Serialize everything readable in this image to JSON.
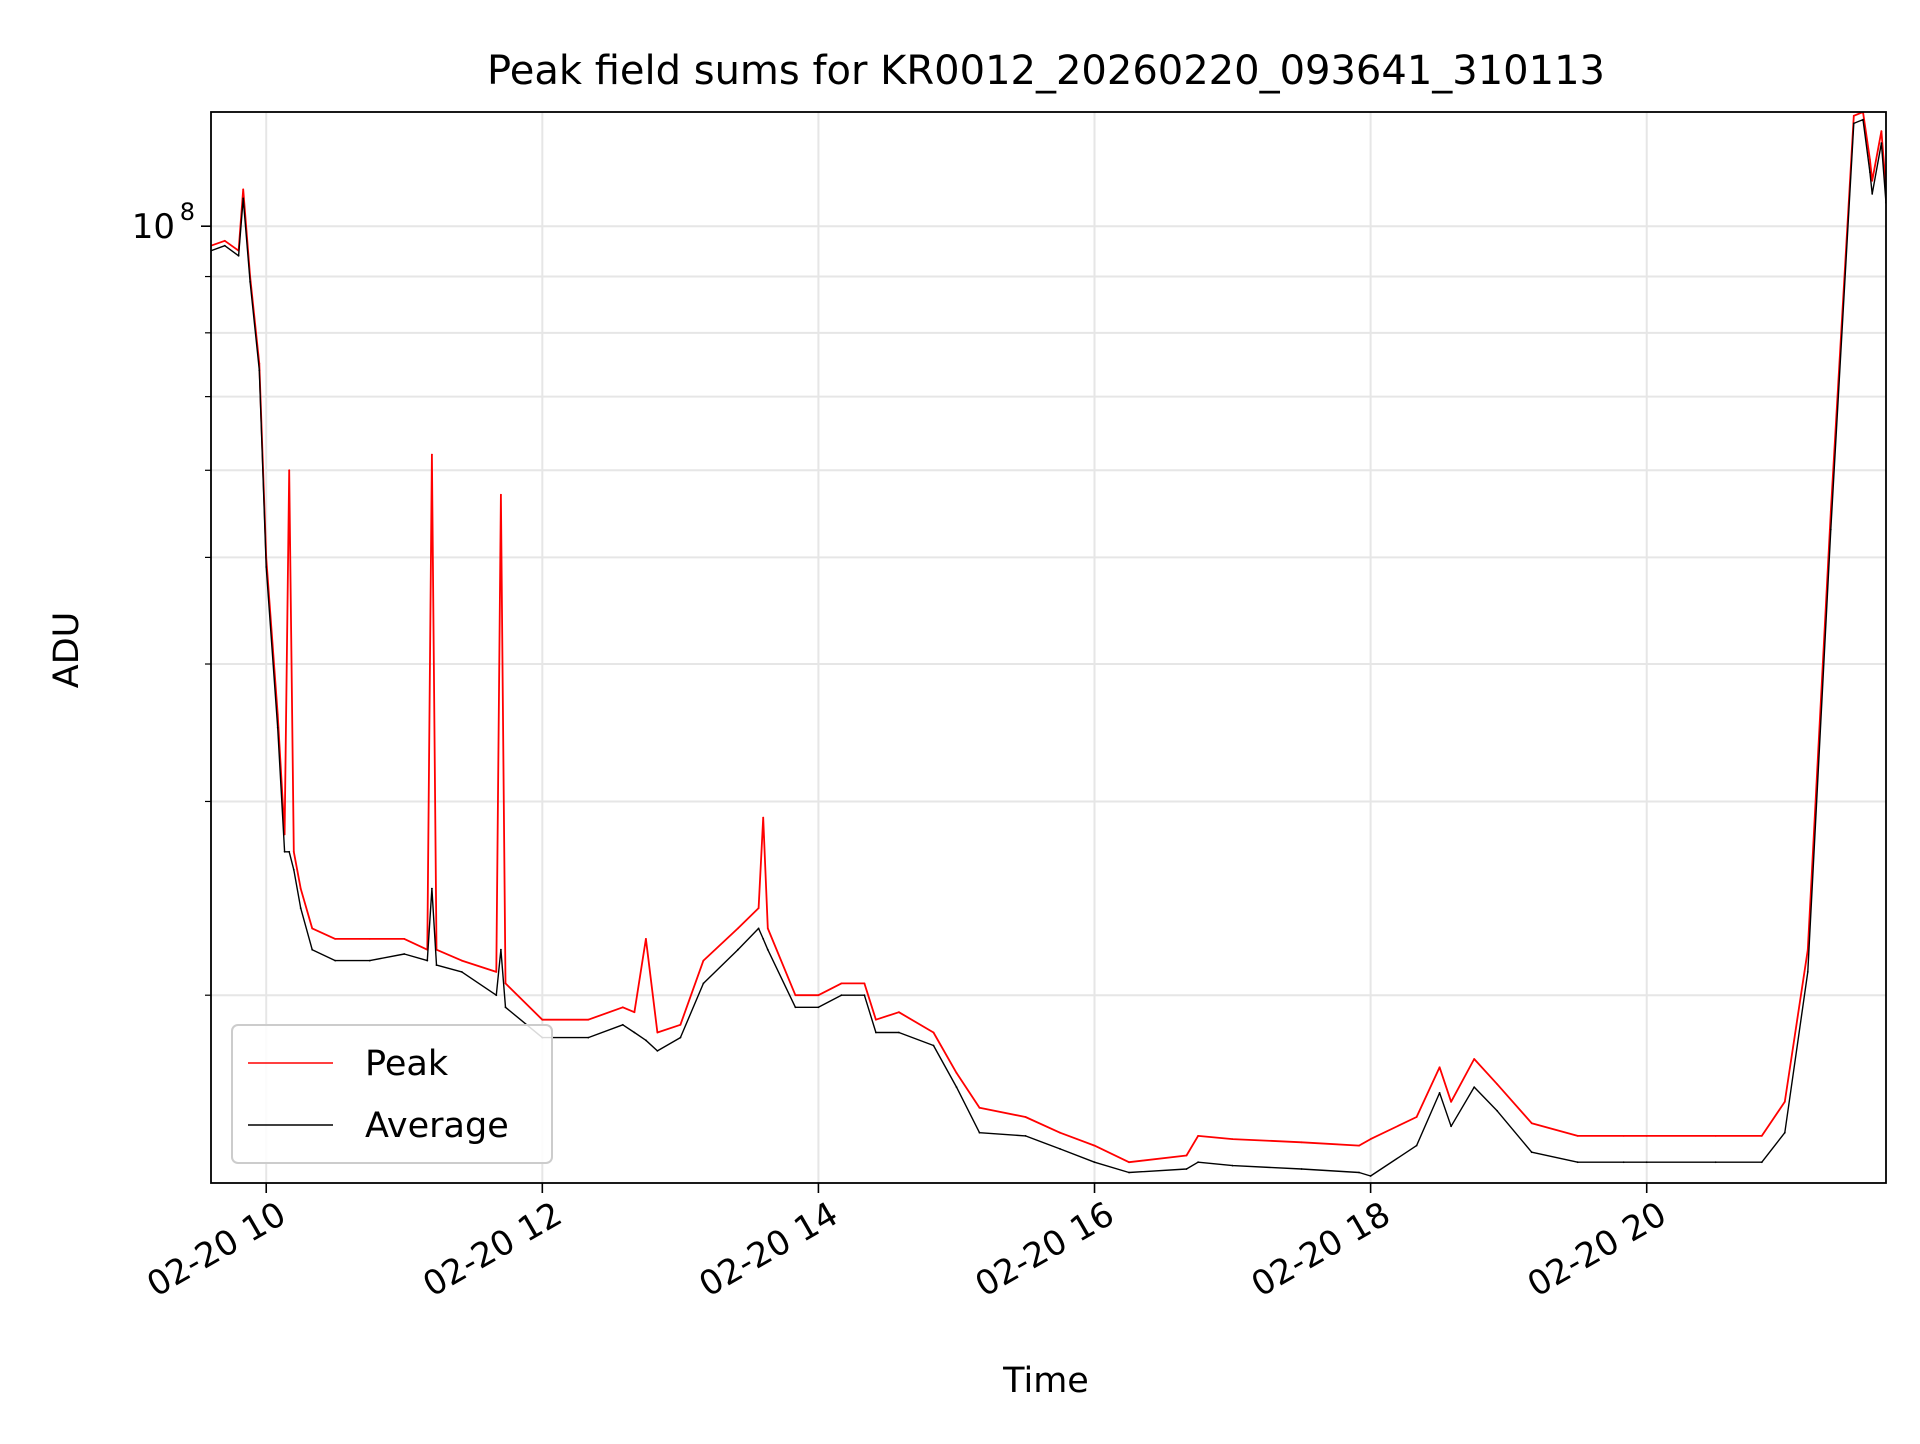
{
  "chart_data": {
    "type": "line",
    "title": "Peak field sums for KR0012_20260220_093641_310113",
    "xlabel": "Time",
    "ylabel": "ADU",
    "x_unit": "2026-02-20 hours",
    "xlim": [
      "2026-02-20 09:36",
      "2026-02-20 21:44"
    ],
    "ylim": [
      13500000,
      127000000
    ],
    "yscale": "log",
    "grid": true,
    "legend_position": "lower-left",
    "x_ticks": [
      "02-20 10",
      "02-20 12",
      "02-20 14",
      "02-20 16",
      "02-20 18",
      "02-20 20"
    ],
    "y_ticks": [
      {
        "label_base": "10",
        "label_exp": "8",
        "value": 100000000
      }
    ],
    "series": [
      {
        "name": "Peak",
        "color": "#ff0000",
        "x": [
          "2026-02-20 09:36",
          "2026-02-20 09:42",
          "2026-02-20 09:48",
          "2026-02-20 09:50",
          "2026-02-20 09:53",
          "2026-02-20 09:57",
          "2026-02-20 10:00",
          "2026-02-20 10:05",
          "2026-02-20 10:08",
          "2026-02-20 10:10",
          "2026-02-20 10:12",
          "2026-02-20 10:15",
          "2026-02-20 10:20",
          "2026-02-20 10:30",
          "2026-02-20 10:45",
          "2026-02-20 11:00",
          "2026-02-20 11:10",
          "2026-02-20 11:12",
          "2026-02-20 11:14",
          "2026-02-20 11:25",
          "2026-02-20 11:40",
          "2026-02-20 11:42",
          "2026-02-20 11:44",
          "2026-02-20 12:00",
          "2026-02-20 12:20",
          "2026-02-20 12:35",
          "2026-02-20 12:40",
          "2026-02-20 12:45",
          "2026-02-20 12:50",
          "2026-02-20 13:00",
          "2026-02-20 13:10",
          "2026-02-20 13:25",
          "2026-02-20 13:34",
          "2026-02-20 13:36",
          "2026-02-20 13:38",
          "2026-02-20 13:50",
          "2026-02-20 14:00",
          "2026-02-20 14:10",
          "2026-02-20 14:20",
          "2026-02-20 14:25",
          "2026-02-20 14:35",
          "2026-02-20 14:50",
          "2026-02-20 15:00",
          "2026-02-20 15:10",
          "2026-02-20 15:30",
          "2026-02-20 15:45",
          "2026-02-20 16:00",
          "2026-02-20 16:15",
          "2026-02-20 16:40",
          "2026-02-20 16:45",
          "2026-02-20 17:00",
          "2026-02-20 17:30",
          "2026-02-20 17:55",
          "2026-02-20 18:00",
          "2026-02-20 18:20",
          "2026-02-20 18:30",
          "2026-02-20 18:35",
          "2026-02-20 18:45",
          "2026-02-20 18:55",
          "2026-02-20 19:10",
          "2026-02-20 19:30",
          "2026-02-20 19:50",
          "2026-02-20 20:00",
          "2026-02-20 20:30",
          "2026-02-20 20:50",
          "2026-02-20 21:00",
          "2026-02-20 21:10",
          "2026-02-20 21:20",
          "2026-02-20 21:30",
          "2026-02-20 21:34",
          "2026-02-20 21:37",
          "2026-02-20 21:38",
          "2026-02-20 21:42",
          "2026-02-20 21:44"
        ],
        "values": [
          96000000,
          97000000,
          95000000,
          108000000,
          90000000,
          75000000,
          50000000,
          36000000,
          28000000,
          60000000,
          27000000,
          25000000,
          23000000,
          22500000,
          22500000,
          22500000,
          22000000,
          62000000,
          22000000,
          21500000,
          21000000,
          57000000,
          20500000,
          19000000,
          19000000,
          19500000,
          19300000,
          22500000,
          18500000,
          18800000,
          21500000,
          23000000,
          24000000,
          29000000,
          23000000,
          20000000,
          20000000,
          20500000,
          20500000,
          19000000,
          19300000,
          18500000,
          17000000,
          15800000,
          15500000,
          15000000,
          14600000,
          14100000,
          14300000,
          14900000,
          14800000,
          14700000,
          14600000,
          14800000,
          15500000,
          17200000,
          16000000,
          17500000,
          16600000,
          15300000,
          14900000,
          14900000,
          14900000,
          14900000,
          14900000,
          16000000,
          22000000,
          55000000,
          126000000,
          127000000,
          115000000,
          110000000,
          122000000,
          108000000
        ]
      },
      {
        "name": "Average",
        "color": "#000000",
        "x": [
          "2026-02-20 09:36",
          "2026-02-20 09:42",
          "2026-02-20 09:48",
          "2026-02-20 09:50",
          "2026-02-20 09:53",
          "2026-02-20 09:57",
          "2026-02-20 10:00",
          "2026-02-20 10:05",
          "2026-02-20 10:08",
          "2026-02-20 10:10",
          "2026-02-20 10:12",
          "2026-02-20 10:15",
          "2026-02-20 10:20",
          "2026-02-20 10:30",
          "2026-02-20 10:45",
          "2026-02-20 11:00",
          "2026-02-20 11:10",
          "2026-02-20 11:12",
          "2026-02-20 11:14",
          "2026-02-20 11:25",
          "2026-02-20 11:40",
          "2026-02-20 11:42",
          "2026-02-20 11:44",
          "2026-02-20 12:00",
          "2026-02-20 12:20",
          "2026-02-20 12:35",
          "2026-02-20 12:40",
          "2026-02-20 12:45",
          "2026-02-20 12:50",
          "2026-02-20 13:00",
          "2026-02-20 13:10",
          "2026-02-20 13:25",
          "2026-02-20 13:34",
          "2026-02-20 13:36",
          "2026-02-20 13:38",
          "2026-02-20 13:50",
          "2026-02-20 14:00",
          "2026-02-20 14:10",
          "2026-02-20 14:20",
          "2026-02-20 14:25",
          "2026-02-20 14:35",
          "2026-02-20 14:50",
          "2026-02-20 15:00",
          "2026-02-20 15:10",
          "2026-02-20 15:30",
          "2026-02-20 15:45",
          "2026-02-20 16:00",
          "2026-02-20 16:15",
          "2026-02-20 16:40",
          "2026-02-20 16:45",
          "2026-02-20 17:00",
          "2026-02-20 17:30",
          "2026-02-20 17:55",
          "2026-02-20 18:00",
          "2026-02-20 18:20",
          "2026-02-20 18:30",
          "2026-02-20 18:35",
          "2026-02-20 18:45",
          "2026-02-20 18:55",
          "2026-02-20 19:10",
          "2026-02-20 19:30",
          "2026-02-20 19:50",
          "2026-02-20 20:00",
          "2026-02-20 20:30",
          "2026-02-20 20:50",
          "2026-02-20 21:00",
          "2026-02-20 21:10",
          "2026-02-20 21:20",
          "2026-02-20 21:30",
          "2026-02-20 21:34",
          "2026-02-20 21:37",
          "2026-02-20 21:38",
          "2026-02-20 21:42",
          "2026-02-20 21:44"
        ],
        "values": [
          95000000,
          96000000,
          94000000,
          106000000,
          89000000,
          74000000,
          49000000,
          35000000,
          27000000,
          27000000,
          26000000,
          24000000,
          22000000,
          21500000,
          21500000,
          21800000,
          21500000,
          25000000,
          21300000,
          21000000,
          20000000,
          22000000,
          19500000,
          18300000,
          18300000,
          18800000,
          18500000,
          18200000,
          17800000,
          18300000,
          20500000,
          22000000,
          23000000,
          22500000,
          22000000,
          19500000,
          19500000,
          20000000,
          20000000,
          18500000,
          18500000,
          18000000,
          16500000,
          15000000,
          14900000,
          14500000,
          14100000,
          13800000,
          13900000,
          14100000,
          14000000,
          13900000,
          13800000,
          13700000,
          14600000,
          16300000,
          15200000,
          16500000,
          15700000,
          14400000,
          14100000,
          14100000,
          14100000,
          14100000,
          14100000,
          15000000,
          21000000,
          53000000,
          124000000,
          125000000,
          112000000,
          107000000,
          119000000,
          105000000
        ]
      }
    ]
  }
}
